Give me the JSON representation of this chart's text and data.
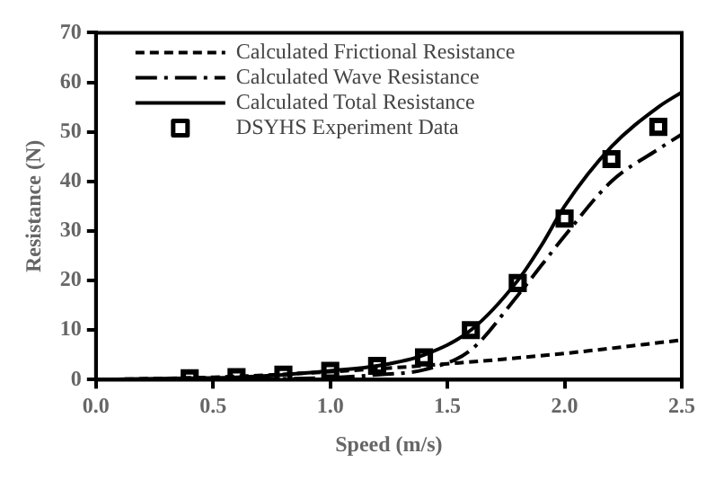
{
  "chart_data": {
    "type": "line",
    "xlabel": "Speed (m/s)",
    "ylabel": "Resistance (N)",
    "xlim": [
      0,
      2.5
    ],
    "ylim": [
      0,
      70
    ],
    "xticks": [
      {
        "value": 0,
        "label": "0.0"
      },
      0.5,
      {
        "value": 1,
        "label": "1.0"
      },
      1.5,
      {
        "value": 2,
        "label": "2.0"
      },
      2.5
    ],
    "yticks": [
      0,
      10,
      20,
      30,
      40,
      50,
      60,
      70
    ],
    "grid": false,
    "legend": "top",
    "series": [
      {
        "name": "Calculated Frictional Resistance",
        "color": "#000000",
        "line_style": "dashed",
        "marker": "none",
        "x": [
          0,
          0.5,
          1.0,
          1.5,
          2.0,
          2.5
        ],
        "values": [
          0,
          0.5,
          1.6,
          3.2,
          5.3,
          8
        ]
      },
      {
        "name": "Calculated Wave Resistance",
        "color": "#000000",
        "line_style": "dashdot",
        "marker": "none",
        "x": [
          0,
          0.5,
          1.0,
          1.2,
          1.4,
          1.6,
          1.8,
          1.9,
          2.0,
          2.2,
          2.4,
          2.5
        ],
        "values": [
          0,
          0.1,
          0.4,
          1,
          2,
          6,
          17,
          23,
          29,
          40,
          46.5,
          49.5
        ]
      },
      {
        "name": "Calculated Total Resistance",
        "color": "#000000",
        "line_style": "solid",
        "marker": "none",
        "x": [
          0,
          0.4,
          0.6,
          0.8,
          1.0,
          1.2,
          1.4,
          1.6,
          1.8,
          1.9,
          2.0,
          2.2,
          2.4,
          2.5
        ],
        "values": [
          0,
          0.3,
          0.5,
          1,
          1.8,
          2.8,
          5,
          10,
          20,
          27,
          35,
          47,
          55,
          58
        ]
      },
      {
        "name": "DSYHS Experiment Data",
        "type": "scatter",
        "color": "#000000",
        "marker": "square",
        "x": [
          0.4,
          0.6,
          0.8,
          1.0,
          1.2,
          1.4,
          1.6,
          1.8,
          2.0,
          2.2,
          2.4
        ],
        "values": [
          0.3,
          0.5,
          1.0,
          1.8,
          2.8,
          4.5,
          10,
          19.5,
          32.5,
          44.5,
          51
        ]
      }
    ]
  }
}
